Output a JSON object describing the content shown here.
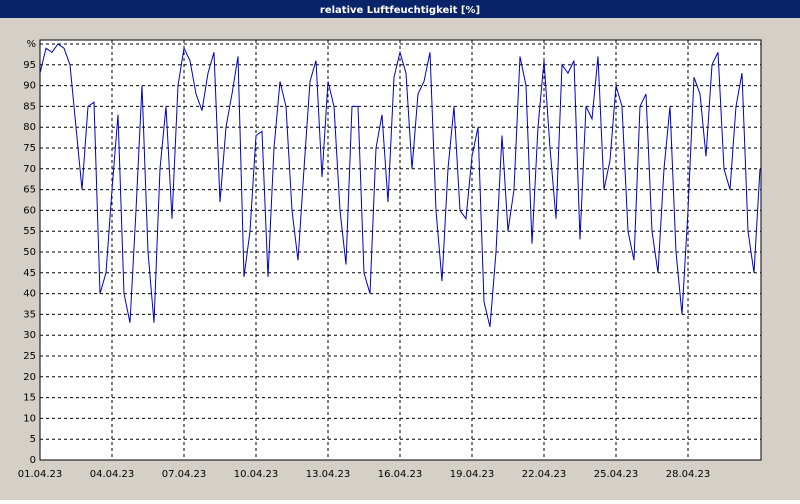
{
  "chart_data": {
    "type": "line",
    "title": "relative Luftfeuchtigkeit [%]",
    "categories": [
      "01.04.23",
      null,
      null,
      null,
      null,
      null,
      null,
      null,
      null,
      null,
      null,
      null,
      "04.04.23",
      null,
      null,
      null,
      null,
      null,
      null,
      null,
      null,
      null,
      null,
      null,
      "07.04.23",
      null,
      null,
      null,
      null,
      null,
      null,
      null,
      null,
      null,
      null,
      null,
      "10.04.23",
      null,
      null,
      null,
      null,
      null,
      null,
      null,
      null,
      null,
      null,
      null,
      "13.04.23",
      null,
      null,
      null,
      null,
      null,
      null,
      null,
      null,
      null,
      null,
      null,
      "16.04.23",
      null,
      null,
      null,
      null,
      null,
      null,
      null,
      null,
      null,
      null,
      null,
      "19.04.23",
      null,
      null,
      null,
      null,
      null,
      null,
      null,
      null,
      null,
      null,
      null,
      "22.04.23",
      null,
      null,
      null,
      null,
      null,
      null,
      null,
      null,
      null,
      null,
      null,
      "25.04.23",
      null,
      null,
      null,
      null,
      null,
      null,
      null,
      null,
      null,
      null,
      null,
      "28.04.23",
      null,
      null,
      null,
      null,
      null,
      null,
      null,
      null,
      null,
      null,
      null,
      null
    ],
    "values": [
      93,
      99,
      98,
      100,
      99,
      95,
      80,
      65,
      85,
      86,
      40,
      45,
      65,
      83,
      40,
      33,
      60,
      90,
      50,
      33,
      70,
      85,
      58,
      90,
      99,
      96,
      88,
      84,
      93,
      98,
      62,
      80,
      88,
      97,
      44,
      55,
      78,
      79,
      44,
      75,
      91,
      85,
      60,
      48,
      70,
      91,
      96,
      68,
      91,
      85,
      60,
      47,
      85,
      85,
      45,
      40,
      75,
      83,
      62,
      92,
      98,
      93,
      70,
      88,
      91,
      98,
      60,
      43,
      70,
      85,
      60,
      58,
      73,
      80,
      38,
      32,
      50,
      78,
      55,
      65,
      97,
      90,
      52,
      80,
      96,
      75,
      58,
      95,
      93,
      96,
      53,
      85,
      82,
      97,
      65,
      72,
      90,
      85,
      55,
      48,
      85,
      88,
      55,
      45,
      70,
      85,
      50,
      35,
      60,
      92,
      88,
      73,
      95,
      98,
      70,
      65,
      85,
      93,
      55,
      45,
      70
    ],
    "color": "#0000c8",
    "ylim": [
      0,
      100
    ],
    "yticks": [
      0,
      5,
      10,
      15,
      20,
      25,
      30,
      35,
      40,
      45,
      50,
      55,
      60,
      65,
      70,
      75,
      80,
      85,
      90,
      95,
      {
        "value": 100,
        "label": "%"
      }
    ],
    "grid": true
  }
}
